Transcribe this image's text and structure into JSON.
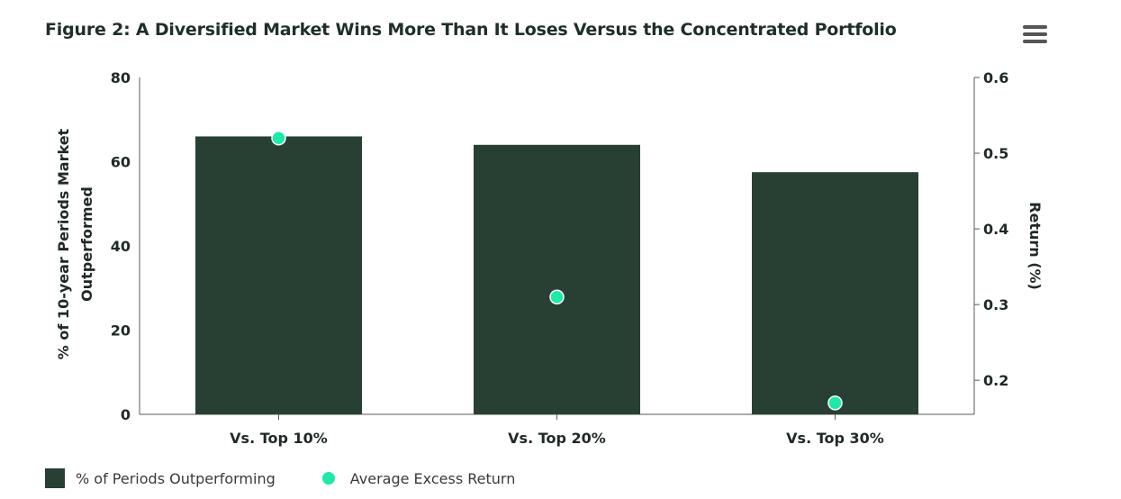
{
  "title": "Figure 2: A Diversified Market Wins More Than It Loses Versus the Concentrated Portfolio",
  "menu_icon": "hamburger-menu-icon",
  "colors": {
    "bar": "#284034",
    "dot": "#1de9a8",
    "axis": "#5a5a5a"
  },
  "chart_data": {
    "type": "bar",
    "categories": [
      "Vs. Top 10%",
      "Vs. Top 20%",
      "Vs. Top 30%"
    ],
    "series": [
      {
        "name": "% of Periods Outperforming",
        "type": "bar",
        "axis": "left",
        "values": [
          66,
          64,
          57.5
        ]
      },
      {
        "name": "Average Excess Return",
        "type": "scatter",
        "axis": "right",
        "values": [
          0.52,
          0.31,
          0.17
        ]
      }
    ],
    "ylabel": "% of 10-year Periods Market Outperformed",
    "ylabel_lines": [
      "% of 10-year Periods Market",
      "Outperformed"
    ],
    "y2label": "Return (%)",
    "ylim": [
      0,
      80
    ],
    "y2lim": [
      0.155,
      0.6
    ],
    "yticks": [
      0,
      20,
      40,
      60,
      80
    ],
    "y2ticks": [
      0.2,
      0.3,
      0.4,
      0.5,
      0.6
    ],
    "ytick_labels": [
      "0",
      "20",
      "40",
      "60",
      "80"
    ],
    "y2tick_labels": [
      "0.2",
      "0.3",
      "0.4",
      "0.5",
      "0.6"
    ],
    "grid": false,
    "legend_position": "bottom-left"
  },
  "legend": {
    "bars_label": "% of Periods Outperforming",
    "dots_label": "Average Excess Return"
  }
}
